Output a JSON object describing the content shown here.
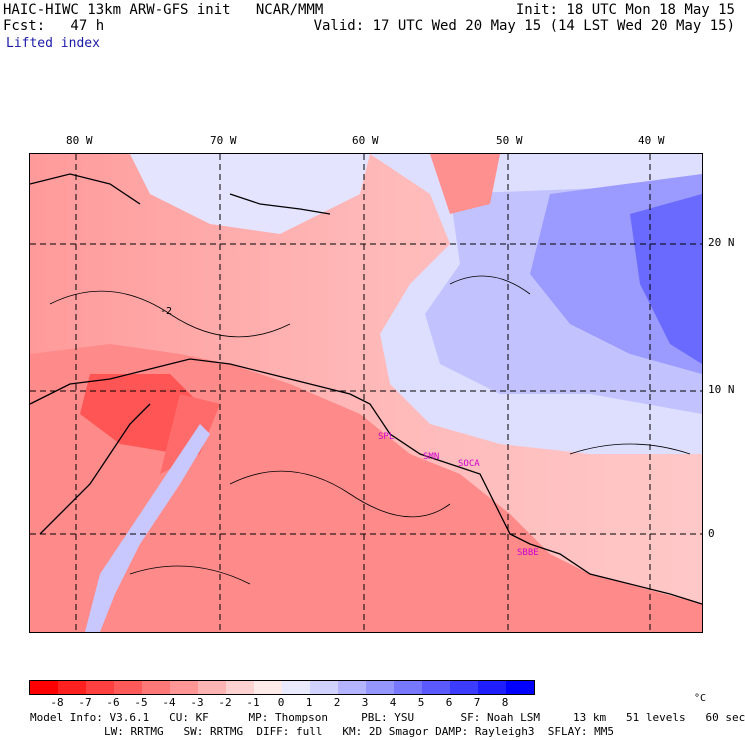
{
  "header": {
    "model_line": "HAIC-HIWC 13km ARW-GFS init   NCAR/MMM",
    "fcst_line": "Fcst:   47 h",
    "init_line": "Init: 18 UTC Mon 18 May 15",
    "valid_line": "Valid: 17 UTC Wed 20 May 15 (14 LST Wed 20 May 15)",
    "field_name": "Lifted index"
  },
  "longitude_labels": [
    "80 W",
    "70 W",
    "60 W",
    "50 W",
    "40 W"
  ],
  "latitude_labels": [
    "20 N",
    "10 N",
    "0"
  ],
  "colorbar": {
    "ticks": [
      "-8",
      "-7",
      "-6",
      "-5",
      "-4",
      "-3",
      "-2",
      "-1",
      "0",
      "1",
      "2",
      "3",
      "4",
      "5",
      "6",
      "7",
      "8"
    ],
    "unit": "°C",
    "colors": [
      "#ff0000",
      "#ff2020",
      "#ff4040",
      "#ff5a5a",
      "#ff7878",
      "#ff9696",
      "#ffb4b4",
      "#ffd2d2",
      "#ffeaea",
      "#eaeaff",
      "#d2d2ff",
      "#b4b4ff",
      "#9696ff",
      "#7878ff",
      "#5a5aff",
      "#3c3cff",
      "#1e1eff",
      "#0000ff"
    ]
  },
  "map_labels": {
    "station_1": "SPL",
    "station_2": "SMN",
    "station_3": "SOCA",
    "station_4": "SBBE",
    "contour_label": "-2"
  },
  "footer": {
    "line1": "Model Info: V3.6.1   CU: KF      MP: Thompson     PBL: YSU       SF: Noah LSM     13 km   51 levels   60 sec",
    "line2": "LW: RRTMG   SW: RRTMG  DIFF: full   KM: 2D Smagor DAMP: Rayleigh3  SFLAY: MM5"
  }
}
